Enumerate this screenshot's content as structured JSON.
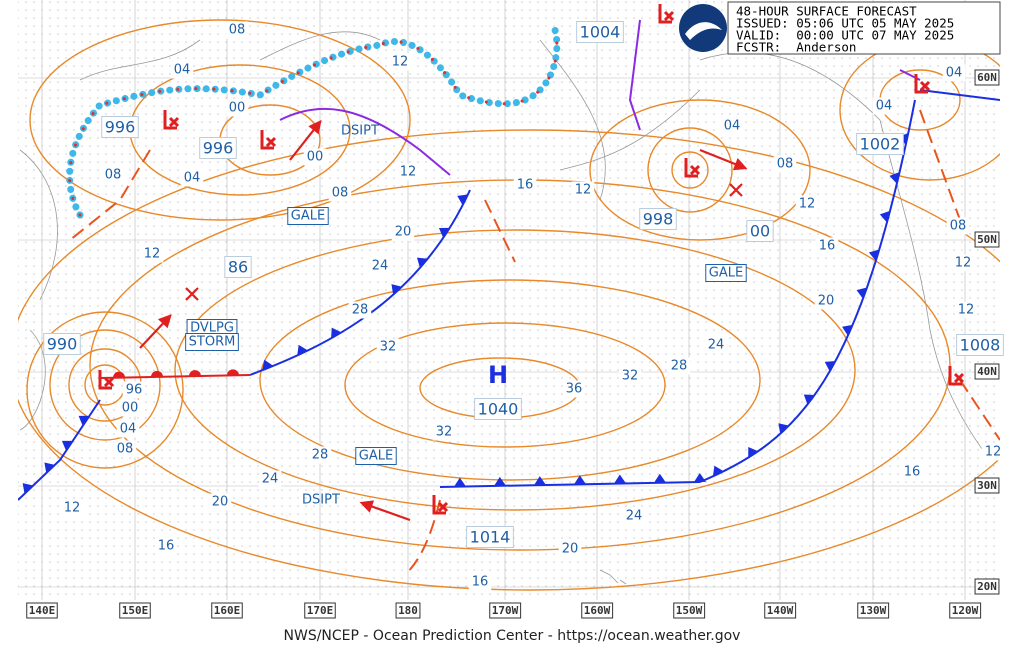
{
  "header": {
    "lines": [
      "48-HOUR SURFACE FORECAST",
      "ISSUED: 05:06 UTC 05 MAY 2025",
      "VALID:  00:00 UTC 07 MAY 2025",
      "FCSTR:  Anderson"
    ]
  },
  "pressure_centers": [
    "996",
    "996",
    "1004",
    "1002",
    "998",
    "00",
    "86",
    "990",
    "1040",
    "1014",
    "1008"
  ],
  "isobar_labels": [
    "08",
    "04",
    "00",
    "08",
    "04",
    "00",
    "08",
    "12",
    "12",
    "16",
    "12",
    "04",
    "08",
    "12",
    "16",
    "20",
    "24",
    "28",
    "32",
    "36",
    "32",
    "28",
    "24",
    "20",
    "16",
    "12",
    "08",
    "04",
    "00",
    "96",
    "12",
    "20",
    "24",
    "28",
    "32",
    "24",
    "20",
    "16",
    "16",
    "12",
    "12",
    "12",
    "08",
    "04",
    "04"
  ],
  "annotations": [
    "GALE",
    "GALE",
    "GALE",
    "DVLPG",
    "STORM",
    "DSIPT",
    "DSIPT",
    "H"
  ],
  "longitudes": [
    "140E",
    "150E",
    "160E",
    "170E",
    "180",
    "170W",
    "160W",
    "150W",
    "140W",
    "130W",
    "120W"
  ],
  "latitudes": [
    "60N",
    "50N",
    "40N",
    "30N",
    "20N"
  ],
  "footer": "NWS/NCEP - Ocean Prediction Center - https://ocean.weather.gov"
}
